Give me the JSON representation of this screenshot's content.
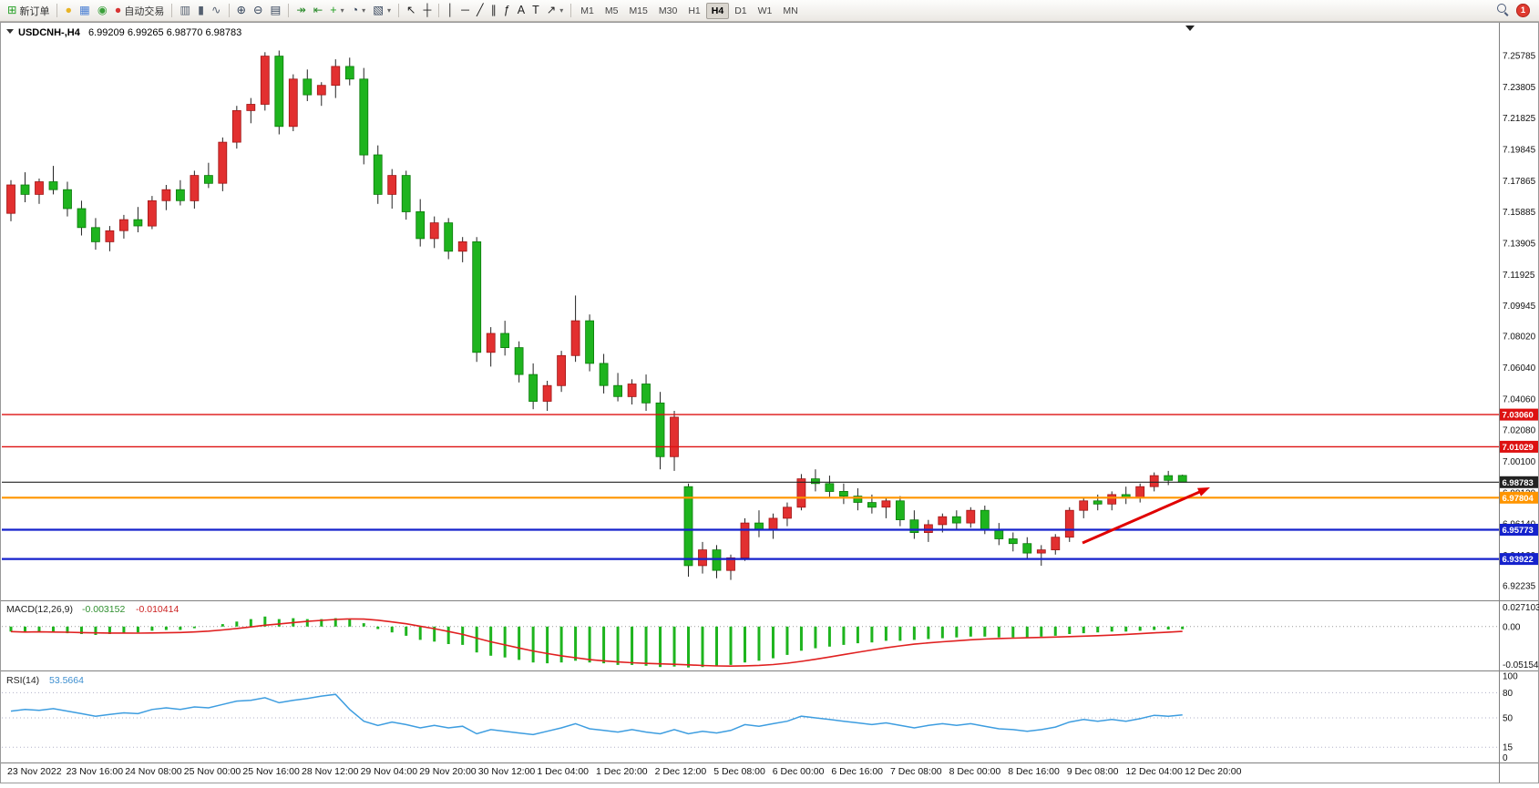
{
  "toolbar": {
    "buttons": [
      {
        "name": "new-order-button",
        "glyph": "⊞",
        "color": "#1f9e1f",
        "label": "新订单"
      },
      {
        "sep": true
      },
      {
        "name": "metaeditor-button",
        "glyph": "●",
        "color": "#e8b425"
      },
      {
        "name": "market-watch-button",
        "glyph": "▦",
        "color": "#4a7fd4"
      },
      {
        "name": "signals-button",
        "glyph": "◉",
        "color": "#3aa03a"
      },
      {
        "name": "autotrading-button",
        "glyph": "●",
        "color": "#d83434",
        "label": "自动交易"
      },
      {
        "sep": true
      },
      {
        "name": "bar-chart-button",
        "glyph": "▥",
        "color": "#556070"
      },
      {
        "name": "candlestick-chart-button",
        "glyph": "▮",
        "color": "#556070"
      },
      {
        "name": "line-chart-button",
        "glyph": "∿",
        "color": "#556070"
      },
      {
        "sep": true
      },
      {
        "name": "zoom-in-button",
        "glyph": "⊕",
        "color": "#33435a"
      },
      {
        "name": "zoom-out-button",
        "glyph": "⊖",
        "color": "#33435a"
      },
      {
        "name": "tile-windows-button",
        "glyph": "▤",
        "color": "#33435a"
      },
      {
        "sep": true
      },
      {
        "name": "auto-scroll-button",
        "glyph": "↠",
        "color": "#2a8a2a"
      },
      {
        "name": "chart-shift-button",
        "glyph": "⇤",
        "color": "#2a8a2a"
      },
      {
        "name": "indicators-button",
        "glyph": "+",
        "color": "#1f9e1f",
        "caret": true
      },
      {
        "name": "periods-button",
        "glyph": "◔",
        "color": "#33435a",
        "caret": true
      },
      {
        "name": "templates-button",
        "glyph": "▧",
        "color": "#33435a",
        "caret": true
      },
      {
        "sep": true
      },
      {
        "name": "cursor-button",
        "glyph": "↖",
        "color": "#222222"
      },
      {
        "name": "crosshair-button",
        "glyph": "┼",
        "color": "#222222"
      },
      {
        "sep": true
      },
      {
        "name": "vertical-line-button",
        "glyph": "│",
        "color": "#222222"
      },
      {
        "name": "horizontal-line-button",
        "glyph": "─",
        "color": "#222222"
      },
      {
        "name": "trendline-button",
        "glyph": "╱",
        "color": "#222222"
      },
      {
        "name": "channel-button",
        "glyph": "∥",
        "color": "#222222"
      },
      {
        "name": "fibonacci-button",
        "glyph": "ƒ",
        "color": "#222222"
      },
      {
        "name": "text-button",
        "glyph": "A",
        "color": "#222222"
      },
      {
        "name": "text-label-button",
        "glyph": "T",
        "color": "#222222"
      },
      {
        "name": "arrows-button",
        "glyph": "↗",
        "color": "#222222",
        "caret": true
      },
      {
        "sep": true
      }
    ],
    "timeframes": [
      "M1",
      "M5",
      "M15",
      "M30",
      "H1",
      "H4",
      "D1",
      "W1",
      "MN"
    ],
    "active_timeframe": "H4",
    "notification_count": "1"
  },
  "chart_data": [
    {
      "type": "candlestick",
      "title": "USDCNH-,H4",
      "ohlc_display": "6.99209 6.99265 6.98770 6.98783",
      "bull_color": "#e23030",
      "bear_color": "#1eb41e",
      "candles": [
        [
          7.158,
          7.179,
          7.153,
          7.176
        ],
        [
          7.176,
          7.184,
          7.165,
          7.17
        ],
        [
          7.17,
          7.18,
          7.164,
          7.178
        ],
        [
          7.178,
          7.188,
          7.17,
          7.173
        ],
        [
          7.173,
          7.178,
          7.156,
          7.161
        ],
        [
          7.161,
          7.166,
          7.144,
          7.149
        ],
        [
          7.149,
          7.155,
          7.135,
          7.14
        ],
        [
          7.14,
          7.15,
          7.134,
          7.147
        ],
        [
          7.147,
          7.157,
          7.142,
          7.154
        ],
        [
          7.154,
          7.162,
          7.146,
          7.15
        ],
        [
          7.15,
          7.169,
          7.148,
          7.166
        ],
        [
          7.166,
          7.176,
          7.16,
          7.173
        ],
        [
          7.173,
          7.179,
          7.163,
          7.166
        ],
        [
          7.166,
          7.185,
          7.161,
          7.182
        ],
        [
          7.182,
          7.19,
          7.174,
          7.177
        ],
        [
          7.177,
          7.206,
          7.172,
          7.203
        ],
        [
          7.203,
          7.226,
          7.199,
          7.223
        ],
        [
          7.223,
          7.231,
          7.215,
          7.227
        ],
        [
          7.227,
          7.26,
          7.223,
          7.2575
        ],
        [
          7.2575,
          7.261,
          7.208,
          7.213
        ],
        [
          7.213,
          7.246,
          7.21,
          7.243
        ],
        [
          7.243,
          7.249,
          7.229,
          7.233
        ],
        [
          7.233,
          7.241,
          7.226,
          7.239
        ],
        [
          7.239,
          7.2555,
          7.231,
          7.251
        ],
        [
          7.251,
          7.2565,
          7.239,
          7.243
        ],
        [
          7.243,
          7.25,
          7.189,
          7.195
        ],
        [
          7.195,
          7.201,
          7.164,
          7.17
        ],
        [
          7.17,
          7.186,
          7.161,
          7.182
        ],
        [
          7.182,
          7.185,
          7.154,
          7.159
        ],
        [
          7.159,
          7.167,
          7.137,
          7.142
        ],
        [
          7.142,
          7.156,
          7.136,
          7.152
        ],
        [
          7.152,
          7.155,
          7.129,
          7.134
        ],
        [
          7.134,
          7.143,
          7.127,
          7.14
        ],
        [
          7.14,
          7.143,
          7.064,
          7.07
        ],
        [
          7.07,
          7.086,
          7.061,
          7.082
        ],
        [
          7.082,
          7.09,
          7.068,
          7.073
        ],
        [
          7.073,
          7.077,
          7.051,
          7.056
        ],
        [
          7.056,
          7.063,
          7.034,
          7.039
        ],
        [
          7.039,
          7.052,
          7.033,
          7.049
        ],
        [
          7.049,
          7.071,
          7.045,
          7.068
        ],
        [
          7.068,
          7.106,
          7.064,
          7.09
        ],
        [
          7.09,
          7.094,
          7.058,
          7.063
        ],
        [
          7.063,
          7.069,
          7.044,
          7.049
        ],
        [
          7.049,
          7.057,
          7.039,
          7.042
        ],
        [
          7.042,
          7.053,
          7.037,
          7.05
        ],
        [
          7.05,
          7.056,
          7.033,
          7.038
        ],
        [
          7.038,
          7.045,
          6.996,
          7.004
        ],
        [
          7.004,
          7.033,
          6.995,
          7.029
        ],
        [
          6.985,
          6.987,
          6.928,
          6.935
        ],
        [
          6.935,
          6.95,
          6.93,
          6.945
        ],
        [
          6.945,
          6.948,
          6.927,
          6.932
        ],
        [
          6.932,
          6.942,
          6.926,
          6.94
        ],
        [
          6.94,
          6.965,
          6.938,
          6.962
        ],
        [
          6.962,
          6.97,
          6.953,
          6.958
        ],
        [
          6.958,
          6.968,
          6.952,
          6.965
        ],
        [
          6.965,
          6.975,
          6.96,
          6.972
        ],
        [
          6.972,
          6.993,
          6.97,
          6.99
        ],
        [
          6.99,
          6.996,
          6.982,
          6.987
        ],
        [
          6.987,
          6.992,
          6.978,
          6.982
        ],
        [
          6.982,
          6.987,
          6.974,
          6.979
        ],
        [
          6.979,
          6.984,
          6.97,
          6.975
        ],
        [
          6.975,
          6.98,
          6.968,
          6.972
        ],
        [
          6.972,
          6.978,
          6.965,
          6.976
        ],
        [
          6.976,
          6.979,
          6.96,
          6.964
        ],
        [
          6.964,
          6.97,
          6.952,
          6.956
        ],
        [
          6.956,
          6.964,
          6.95,
          6.961
        ],
        [
          6.961,
          6.968,
          6.956,
          6.966
        ],
        [
          6.966,
          6.97,
          6.958,
          6.962
        ],
        [
          6.962,
          6.972,
          6.959,
          6.97
        ],
        [
          6.97,
          6.973,
          6.955,
          6.958
        ],
        [
          6.958,
          6.962,
          6.948,
          6.952
        ],
        [
          6.952,
          6.956,
          6.944,
          6.949
        ],
        [
          6.949,
          6.953,
          6.939,
          6.943
        ],
        [
          6.943,
          6.948,
          6.935,
          6.945
        ],
        [
          6.945,
          6.955,
          6.942,
          6.953
        ],
        [
          6.953,
          6.972,
          6.95,
          6.97
        ],
        [
          6.97,
          6.978,
          6.965,
          6.976
        ],
        [
          6.976,
          6.98,
          6.97,
          6.974
        ],
        [
          6.974,
          6.982,
          6.97,
          6.98
        ],
        [
          6.98,
          6.985,
          6.974,
          6.978
        ],
        [
          6.978,
          6.987,
          6.975,
          6.985
        ],
        [
          6.985,
          6.994,
          6.982,
          6.992
        ],
        [
          6.992,
          6.995,
          6.986,
          6.989
        ],
        [
          6.99209,
          6.99265,
          6.9877,
          6.98783
        ]
      ],
      "x_axis_labels": [
        "23 Nov 2022",
        "23 Nov 16:00",
        "24 Nov 08:00",
        "25 Nov 00:00",
        "25 Nov 16:00",
        "28 Nov 12:00",
        "29 Nov 04:00",
        "29 Nov 20:00",
        "30 Nov 12:00",
        "1 Dec 04:00",
        "1 Dec 20:00",
        "2 Dec 12:00",
        "5 Dec 08:00",
        "6 Dec 00:00",
        "6 Dec 16:00",
        "7 Dec 08:00",
        "8 Dec 00:00",
        "8 Dec 16:00",
        "9 Dec 08:00",
        "12 Dec 04:00",
        "12 Dec 20:00"
      ],
      "y_axis_labels": [
        "7.25785",
        "7.23805",
        "7.21825",
        "7.19845",
        "7.17865",
        "7.15885",
        "7.13905",
        "7.11925",
        "7.09945",
        "7.08020",
        "7.06040",
        "7.04060",
        "7.02080",
        "7.00100",
        "6.98120",
        "6.96140",
        "6.94160",
        "6.92235"
      ],
      "hlines": [
        {
          "price": 7.0306,
          "label": "7.03060",
          "color": "#dd1111",
          "width": 1.4
        },
        {
          "price": 7.01029,
          "label": "7.01029",
          "color": "#dd1111",
          "width": 1.4
        },
        {
          "price": 6.98783,
          "label": "6.98783",
          "color": "#222222",
          "width": 1.1
        },
        {
          "price": 6.97804,
          "label": "6.97804",
          "color": "#ff9500",
          "width": 2.2
        },
        {
          "price": 6.95773,
          "label": "6.95773",
          "color": "#1522cc",
          "width": 2.2
        },
        {
          "price": 6.93922,
          "label": "6.93922",
          "color": "#1522cc",
          "width": 2.2
        }
      ],
      "annotation_arrow": {
        "from": [
          1188,
          572
        ],
        "to": [
          1328,
          511
        ],
        "color": "#e00000"
      }
    },
    {
      "type": "bar",
      "name": "MACD(12,26,9)",
      "values_display": [
        "-0.003152",
        "-0.010414"
      ],
      "histogram_color": "#1eb41e",
      "signal_color": "#e02020",
      "range": [
        -0.051546,
        0.027103
      ],
      "scale_labels": {
        "max": "0.027103",
        "zero": "0.00",
        "min": "-0.051546"
      },
      "macd": [
        -0.006,
        -0.007,
        -0.006,
        -0.007,
        -0.008,
        -0.009,
        -0.01,
        -0.009,
        -0.008,
        -0.007,
        -0.005,
        -0.004,
        -0.004,
        -0.002,
        0.0,
        0.003,
        0.006,
        0.009,
        0.012,
        0.009,
        0.01,
        0.009,
        0.009,
        0.01,
        0.009,
        0.004,
        -0.003,
        -0.007,
        -0.011,
        -0.016,
        -0.018,
        -0.021,
        -0.022,
        -0.031,
        -0.035,
        -0.037,
        -0.04,
        -0.043,
        -0.044,
        -0.043,
        -0.041,
        -0.043,
        -0.044,
        -0.046,
        -0.046,
        -0.047,
        -0.0485,
        -0.048,
        -0.049,
        -0.0485,
        -0.0475,
        -0.046,
        -0.043,
        -0.041,
        -0.038,
        -0.034,
        -0.029,
        -0.026,
        -0.024,
        -0.022,
        -0.02,
        -0.019,
        -0.017,
        -0.017,
        -0.016,
        -0.015,
        -0.014,
        -0.013,
        -0.012,
        -0.012,
        -0.013,
        -0.013,
        -0.013,
        -0.012,
        -0.011,
        -0.009,
        -0.008,
        -0.007,
        -0.006,
        -0.006,
        -0.005,
        -0.004,
        -0.0035,
        -0.003152
      ]
    },
    {
      "type": "line",
      "name": "RSI(14)",
      "value_display": "53.5664",
      "line_color": "#3d9de0",
      "range": [
        0,
        100
      ],
      "scale_labels": [
        "100",
        "80",
        "50",
        "15",
        "0"
      ],
      "level_lines": [
        80,
        50,
        15
      ],
      "values": [
        58,
        60,
        59,
        61,
        58,
        55,
        52,
        54,
        56,
        55,
        60,
        62,
        60,
        63,
        62,
        66,
        70,
        71,
        74,
        68,
        71,
        73,
        76,
        78,
        60,
        46,
        41,
        45,
        42,
        38,
        41,
        38,
        40,
        31,
        36,
        34,
        32,
        30,
        34,
        38,
        43,
        37,
        35,
        33,
        36,
        33,
        31,
        36,
        31,
        34,
        32,
        35,
        42,
        40,
        43,
        46,
        52,
        50,
        48,
        46,
        44,
        42,
        44,
        41,
        38,
        41,
        43,
        41,
        43,
        40,
        37,
        36,
        34,
        36,
        39,
        45,
        48,
        46,
        48,
        46,
        49,
        53,
        52,
        53.5664
      ]
    }
  ]
}
